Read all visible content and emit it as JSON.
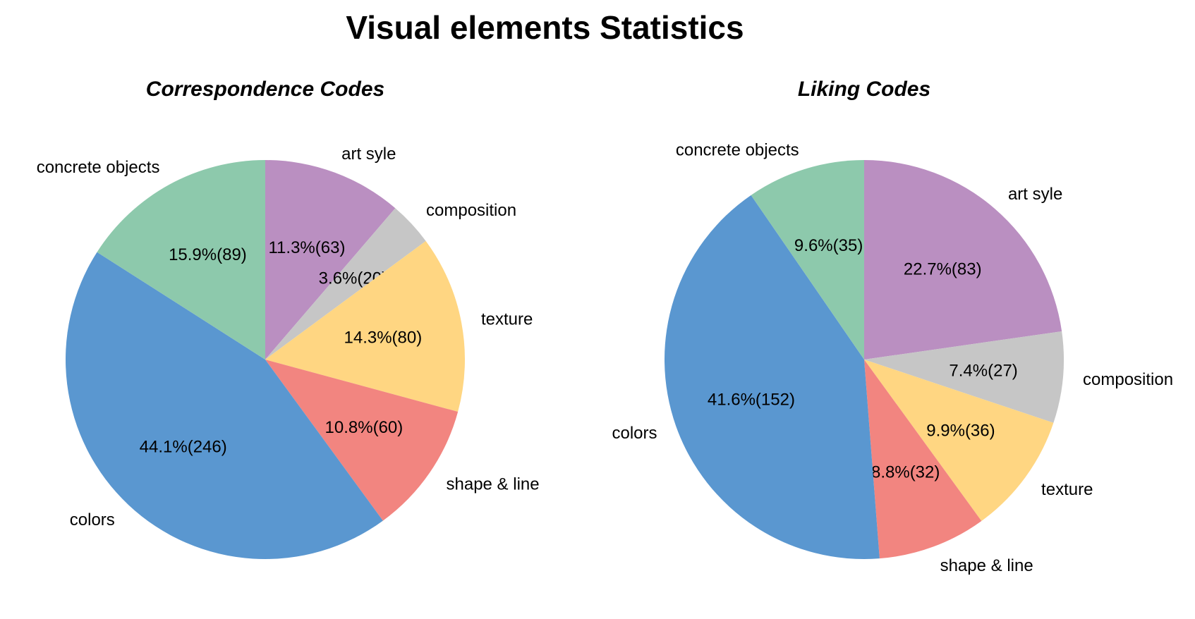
{
  "title": "Visual elements Statistics",
  "chart_data": [
    {
      "type": "pie",
      "title": "Correspondence Codes",
      "slices": [
        {
          "label": "art syle",
          "value": 63,
          "percent_label": "11.3%(63)",
          "color": "#BA8FC1"
        },
        {
          "label": "composition",
          "value": 20,
          "percent_label": "3.6%(20)",
          "color": "#C6C6C6"
        },
        {
          "label": "texture",
          "value": 80,
          "percent_label": "14.3%(80)",
          "color": "#FFD682"
        },
        {
          "label": "shape & line",
          "value": 60,
          "percent_label": "10.8%(60)",
          "color": "#F28580"
        },
        {
          "label": "colors",
          "value": 246,
          "percent_label": "44.1%(246)",
          "color": "#5A97D0"
        },
        {
          "label": "concrete objects",
          "value": 89,
          "percent_label": "15.9%(89)",
          "color": "#8DC9AC"
        }
      ]
    },
    {
      "type": "pie",
      "title": "Liking Codes",
      "slices": [
        {
          "label": "art syle",
          "value": 83,
          "percent_label": "22.7%(83)",
          "color": "#BA8FC1"
        },
        {
          "label": "composition",
          "value": 27,
          "percent_label": "7.4%(27)",
          "color": "#C6C6C6"
        },
        {
          "label": "texture",
          "value": 36,
          "percent_label": "9.9%(36)",
          "color": "#FFD682"
        },
        {
          "label": "shape & line",
          "value": 32,
          "percent_label": "8.8%(32)",
          "color": "#F28580"
        },
        {
          "label": "colors",
          "value": 152,
          "percent_label": "41.6%(152)",
          "color": "#5A97D0"
        },
        {
          "label": "concrete objects",
          "value": 35,
          "percent_label": "9.6%(35)",
          "color": "#8DC9AC"
        }
      ]
    }
  ]
}
